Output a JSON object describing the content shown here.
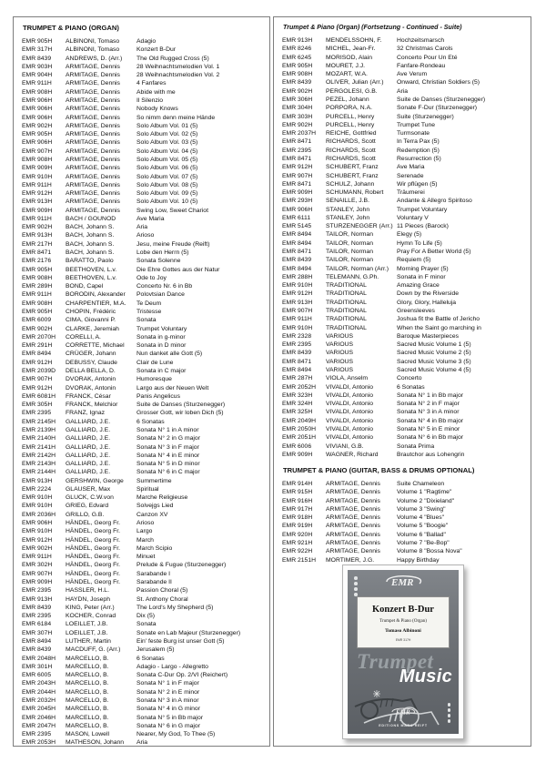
{
  "colors": {
    "box_border": "#7e7e7e",
    "cover_gray": "#6e7277",
    "cover_text_light": "#9aa0a4",
    "cover_text_white": "#ffffff"
  },
  "left_section": {
    "title": "TRUMPET & PIANO (ORGAN)",
    "rows": [
      [
        "EMR 905H",
        "ALBINONI, Tomaso",
        "Adagio"
      ],
      [
        "EMR 317H",
        "ALBINONI, Tomaso",
        "Konzert B-Dur"
      ],
      [
        "EMR 8439",
        "ANDREWS, D. (Arr.)",
        "The Old Rugged Cross (5)"
      ],
      [
        "EMR 903H",
        "ARMITAGE, Dennis",
        "28 Weihnachtsmelodien Vol. 1"
      ],
      [
        "EMR 904H",
        "ARMITAGE, Dennis",
        "28 Weihnachtsmelodien Vol. 2"
      ],
      [
        "EMR 911H",
        "ARMITAGE, Dennis",
        "4 Fanfares"
      ],
      [
        "EMR 908H",
        "ARMITAGE, Dennis",
        "Abide with me"
      ],
      [
        "EMR 906H",
        "ARMITAGE, Dennis",
        "Il Silenzio"
      ],
      [
        "EMR 906H",
        "ARMITAGE, Dennis",
        "Nobody Knows"
      ],
      [
        "EMR 906H",
        "ARMITAGE, Dennis",
        "So nimm denn meine Hände"
      ],
      [
        "EMR 902H",
        "ARMITAGE, Dennis",
        "Solo Album Vol. 01 (5)"
      ],
      [
        "EMR 905H",
        "ARMITAGE, Dennis",
        "Solo Album Vol. 02 (5)"
      ],
      [
        "EMR 906H",
        "ARMITAGE, Dennis",
        "Solo Album Vol. 03 (5)"
      ],
      [
        "EMR 907H",
        "ARMITAGE, Dennis",
        "Solo Album Vol. 04 (5)"
      ],
      [
        "EMR 908H",
        "ARMITAGE, Dennis",
        "Solo Album Vol. 05 (5)"
      ],
      [
        "EMR 909H",
        "ARMITAGE, Dennis",
        "Solo Album Vol. 06 (5)"
      ],
      [
        "EMR 910H",
        "ARMITAGE, Dennis",
        "Solo Album Vol. 07 (5)"
      ],
      [
        "EMR 911H",
        "ARMITAGE, Dennis",
        "Solo Album Vol. 08 (5)"
      ],
      [
        "EMR 912H",
        "ARMITAGE, Dennis",
        "Solo Album Vol. 09 (5)"
      ],
      [
        "EMR 913H",
        "ARMITAGE, Dennis",
        "Solo Album Vol. 10 (5)"
      ],
      [
        "EMR 909H",
        "ARMITAGE, Dennis",
        "Swing Low, Sweet Chariot"
      ],
      [
        "EMR 911H",
        "BACH / GOUNOD",
        "Ave Maria"
      ],
      [
        "EMR 902H",
        "BACH, Johann S.",
        "Aria"
      ],
      [
        "EMR 913H",
        "BACH, Johann S.",
        "Arioso"
      ],
      [
        "EMR 217H",
        "BACH, Johann S.",
        "Jesu, meine Freude (Reift)"
      ],
      [
        "EMR 8471",
        "BACH, Johann S.",
        "Lobe den Herrn (5)"
      ],
      [
        "EMR 2176",
        "BARATTO, Paolo",
        "Sonata Solenne"
      ],
      [
        "EMR 905H",
        "BEETHOVEN, L.v.",
        "Die Ehre Gottes aus der Natur"
      ],
      [
        "EMR 908H",
        "BEETHOVEN, L.v.",
        "Ode to Joy"
      ],
      [
        "EMR 289H",
        "BOND, Capel",
        "Concerto Nr. 6 in Bb"
      ],
      [
        "EMR 911H",
        "BORODIN, Alexander",
        "Polovtsian Dance"
      ],
      [
        "EMR 908H",
        "CHARPENTIER, M.A.",
        "Te Deum"
      ],
      [
        "EMR 905H",
        "CHOPIN, Frédéric",
        "Tristesse"
      ],
      [
        "EMR 6009",
        "CIMA, Giovanni P.",
        "Sonata"
      ],
      [
        "EMR 902H",
        "CLARKE, Jeremiah",
        "Trumpet Voluntary"
      ],
      [
        "EMR 2070H",
        "CORELLI, A.",
        "Sonata in g-minor"
      ],
      [
        "EMR 291H",
        "CORRETTE, Michael",
        "Sonata in D minor"
      ],
      [
        "EMR 8494",
        "CRÜGER, Johann",
        "Nun danket alle Gott (5)"
      ],
      [
        "EMR 912H",
        "DEBUSSY, Claude",
        "Clair de Lune"
      ],
      [
        "EMR 2039D",
        "DELLA BELLA, D.",
        "Sonata in C major"
      ],
      [
        "EMR 907H",
        "DVORAK, Antonin",
        "Humoresque"
      ],
      [
        "EMR 912H",
        "DVORAK, Antonin",
        "Largo aus der Neuen Welt"
      ],
      [
        "EMR 6081H",
        "FRANCK, César",
        "Panis Angelicus"
      ],
      [
        "EMR 305H",
        "FRANCK, Melchior",
        "Suite de Danses (Sturzenegger)"
      ],
      [
        "EMR 2395",
        "FRANZ, Ignaz",
        "Grosser Gott, wir loben Dich (5)"
      ],
      [
        "EMR 2145H",
        "GALLIARD, J.E.",
        "6 Sonatas"
      ],
      [
        "EMR 2139H",
        "GALLIARD, J.E.",
        "Sonata N° 1 in A minor"
      ],
      [
        "EMR 2140H",
        "GALLIARD, J.E.",
        "Sonata N° 2 in G major"
      ],
      [
        "EMR 2141H",
        "GALLIARD, J.E.",
        "Sonata N° 3 in F major"
      ],
      [
        "EMR 2142H",
        "GALLIARD, J.E.",
        "Sonata N° 4 in E minor"
      ],
      [
        "EMR 2143H",
        "GALLIARD, J.E.",
        "Sonata N° 5 in D minor"
      ],
      [
        "EMR 2144H",
        "GALLIARD, J.E.",
        "Sonata N° 6 in C major"
      ],
      [
        "EMR 913H",
        "GERSHWIN, George",
        "Summertime"
      ],
      [
        "EMR 2224",
        "GLAUSER, Max",
        "Spiritual"
      ],
      [
        "EMR 910H",
        "GLUCK, C.W.von",
        "Marche Religieuse"
      ],
      [
        "EMR 910H",
        "GRIEG, Edvard",
        "Solvejgs Lied"
      ],
      [
        "EMR 2036H",
        "GRILLO, G.B.",
        "Canzon XV"
      ],
      [
        "EMR 906H",
        "HÄNDEL, Georg Fr.",
        "Arioso"
      ],
      [
        "EMR 910H",
        "HÄNDEL, Georg Fr.",
        "Largo"
      ],
      [
        "EMR 912H",
        "HÄNDEL, Georg Fr.",
        "March"
      ],
      [
        "EMR 902H",
        "HÄNDEL, Georg Fr.",
        "March Scipio"
      ],
      [
        "EMR 911H",
        "HÄNDEL, Georg Fr.",
        "Minuet"
      ],
      [
        "EMR 302H",
        "HÄNDEL, Georg Fr.",
        "Prelude & Fugue (Sturzenegger)"
      ],
      [
        "EMR 907H",
        "HÄNDEL, Georg Fr.",
        "Sarabande I"
      ],
      [
        "EMR 909H",
        "HÄNDEL, Georg Fr.",
        "Sarabande II"
      ],
      [
        "EMR 2395",
        "HASSLER, H.L.",
        "Passion Choral (5)"
      ],
      [
        "EMR 913H",
        "HAYDN, Joseph",
        "St. Anthony Choral"
      ],
      [
        "EMR 8439",
        "KING, Peter (Arr.)",
        "The Lord's My Shepherd (5)"
      ],
      [
        "EMR 2395",
        "KOCHER, Conrad",
        "Dix (5)"
      ],
      [
        "EMR 6184",
        "LOEILLET, J.B.",
        "Sonata"
      ],
      [
        "EMR 307H",
        "LOEILLET, J.B.",
        "Sonate en Lab Majeur (Sturzenegger)"
      ],
      [
        "EMR 8494",
        "LUTHER, Martin",
        "Ein' feste Burg ist unser Gott (5)"
      ],
      [
        "EMR 8439",
        "MACDUFF, G. (Arr.)",
        "Jerusalem (5)"
      ],
      [
        "EMR 2048H",
        "MARCELLO, B.",
        "6 Sonatas"
      ],
      [
        "EMR 301H",
        "MARCELLO, B.",
        "Adagio - Largo - Allegretto"
      ],
      [
        "EMR 6005",
        "MARCELLO, B.",
        "Sonata C-Dur Op. 2/VI (Reichert)"
      ],
      [
        "EMR 2043H",
        "MARCELLO, B.",
        "Sonata N° 1 in F major"
      ],
      [
        "EMR 2044H",
        "MARCELLO, B.",
        "Sonata N° 2 in E minor"
      ],
      [
        "EMR 2032H",
        "MARCELLO, B.",
        "Sonata N° 3 in A minor"
      ],
      [
        "EMR 2045H",
        "MARCELLO, B.",
        "Sonata N° 4 in G minor"
      ],
      [
        "EMR 2046H",
        "MARCELLO, B.",
        "Sonata N° 5 in Bb major"
      ],
      [
        "EMR 2047H",
        "MARCELLO, B.",
        "Sonata N° 6 in G major"
      ],
      [
        "EMR 2395",
        "MASON, Lowell",
        "Nearer, My God, To Thee (5)"
      ],
      [
        "EMR 2053H",
        "MATHESON, Johann",
        "Aria"
      ]
    ]
  },
  "right_section": {
    "title": "Trumpet & Piano (Organ) (Fortsetzung - Continued - Suite)",
    "rows": [
      [
        "EMR 913H",
        "MENDELSSOHN, F.",
        "Hochzeitsmarsch"
      ],
      [
        "EMR 8246",
        "MICHEL, Jean-Fr.",
        "32 Christmas Carols"
      ],
      [
        "EMR 6245",
        "MORISOD, Alain",
        "Concerto Pour Un Eté"
      ],
      [
        "EMR 905H",
        "MOURET, J.J.",
        "Fanfare-Rondeau"
      ],
      [
        "EMR 908H",
        "MOZART, W.A.",
        "Ave Verum"
      ],
      [
        "EMR 8439",
        "OLIVER, Julian (Arr.)",
        "Onward, Christian Soldiers (5)"
      ],
      [
        "EMR 902H",
        "PERGOLESI, G.B.",
        "Aria"
      ],
      [
        "EMR 306H",
        "PEZEL, Johann",
        "Suite de Danses (Sturzenegger)"
      ],
      [
        "EMR 304H",
        "PORPORA, N.A.",
        "Sonate F-Dur (Sturzenegger)"
      ],
      [
        "EMR 303H",
        "PURCELL, Henry",
        "Suite (Sturzenegger)"
      ],
      [
        "EMR 902H",
        "PURCELL, Henry",
        "Trumpet Tune"
      ],
      [
        "EMR 2037H",
        "REICHE, Gottfried",
        "Turmsonate"
      ],
      [
        "EMR 8471",
        "RICHARDS, Scott",
        "In Terra Pax (5)"
      ],
      [
        "EMR 2395",
        "RICHARDS, Scott",
        "Redemption (5)"
      ],
      [
        "EMR 8471",
        "RICHARDS, Scott",
        "Resurrection (5)"
      ],
      [
        "EMR 912H",
        "SCHUBERT, Franz",
        "Ave Maria"
      ],
      [
        "EMR 907H",
        "SCHUBERT, Franz",
        "Serenade"
      ],
      [
        "EMR 8471",
        "SCHULZ, Johann",
        "Wir pflügen (5)"
      ],
      [
        "EMR 909H",
        "SCHUMANN, Robert",
        "Träumerei"
      ],
      [
        "EMR 293H",
        "SENAILLE, J.B.",
        "Andante & Allegro Spiritoso"
      ],
      [
        "EMR 906H",
        "STANLEY, John",
        "Trumpet Voluntary"
      ],
      [
        "EMR 6111",
        "STANLEY, John",
        "Voluntary V"
      ],
      [
        "EMR 5145",
        "STURZENEGGER (Arr.)",
        "11 Pieces (Barock)"
      ],
      [
        "EMR 8494",
        "TAILOR, Norman",
        "Elegy (5)"
      ],
      [
        "EMR 8494",
        "TAILOR, Norman",
        "Hymn To Life (5)"
      ],
      [
        "EMR 8471",
        "TAILOR, Norman",
        "Pray For A Better World (5)"
      ],
      [
        "EMR 8439",
        "TAILOR, Norman",
        "Requiem (5)"
      ],
      [
        "EMR 8494",
        "TAILOR, Norman (Arr.)",
        "Morning Prayer (5)"
      ],
      [
        "EMR 288H",
        "TELEMANN, G.Ph.",
        "Sonata in F minor"
      ],
      [
        "EMR 910H",
        "TRADITIONAL",
        "Amazing Grace"
      ],
      [
        "EMR 912H",
        "TRADITIONAL",
        "Down by the Riverside"
      ],
      [
        "EMR 913H",
        "TRADITIONAL",
        "Glory, Glory, Halleluja"
      ],
      [
        "EMR 907H",
        "TRADITIONAL",
        "Greensleeves"
      ],
      [
        "EMR 911H",
        "TRADITIONAL",
        "Joshua fit the Battle of Jericho"
      ],
      [
        "EMR 910H",
        "TRADITIONAL",
        "When the Saint go marching in"
      ],
      [
        "EMR 2328",
        "VARIOUS",
        "Baroque Masterpieces"
      ],
      [
        "EMR 2395",
        "VARIOUS",
        "Sacred Music Volume 1 (5)"
      ],
      [
        "EMR 8439",
        "VARIOUS",
        "Sacred Music Volume 2 (5)"
      ],
      [
        "EMR 8471",
        "VARIOUS",
        "Sacred Music Volume 3 (5)"
      ],
      [
        "EMR 8494",
        "VARIOUS",
        "Sacred Music Volume 4 (5)"
      ],
      [
        "EMR 287H",
        "VIOLA, Anselm",
        "Concerto"
      ],
      [
        "EMR 2052H",
        "VIVALDI, Antonio",
        "6 Sonatas"
      ],
      [
        "EMR 323H",
        "VIVALDI, Antonio",
        "Sonata N° 1 in Bb major"
      ],
      [
        "EMR 324H",
        "VIVALDI, Antonio",
        "Sonata N° 2 in F major"
      ],
      [
        "EMR 325H",
        "VIVALDI, Antonio",
        "Sonata N° 3 in A minor"
      ],
      [
        "EMR 2049H",
        "VIVALDI, Antonio",
        "Sonata N° 4 in Bb major"
      ],
      [
        "EMR 2050H",
        "VIVALDI, Antonio",
        "Sonata N° 5 in E minor"
      ],
      [
        "EMR 2051H",
        "VIVALDI, Antonio",
        "Sonata N° 6 in Bb major"
      ],
      [
        "EMR 6006",
        "VIVIANI, G.B.",
        "Sonata Prima"
      ],
      [
        "EMR 909H",
        "WAGNER, Richard",
        "Brautchor aus Lohengrin"
      ]
    ]
  },
  "optional_section": {
    "title": "TRUMPET & PIANO (GUITAR, BASS & DRUMS OPTIONAL)",
    "rows": [
      [
        "EMR 914H",
        "ARMITAGE, Dennis",
        "Suite Chameleon"
      ],
      [
        "EMR 915H",
        "ARMITAGE, Dennis",
        "Volume 1 \"Ragtime\""
      ],
      [
        "EMR 916H",
        "ARMITAGE, Dennis",
        "Volume 2 \"Dixieland\""
      ],
      [
        "EMR 917H",
        "ARMITAGE, Dennis",
        "Volume 3 \"Swing\""
      ],
      [
        "EMR 918H",
        "ARMITAGE, Dennis",
        "Volume 4 \"Blues\""
      ],
      [
        "EMR 919H",
        "ARMITAGE, Dennis",
        "Volume 5 \"Boogie\""
      ],
      [
        "EMR 920H",
        "ARMITAGE, Dennis",
        "Volume 6 \"Ballad\""
      ],
      [
        "EMR 921H",
        "ARMITAGE, Dennis",
        "Volume 7 \"Be-Bop\""
      ],
      [
        "EMR 922H",
        "ARMITAGE, Dennis",
        "Volume 8 \"Bossa Nova\""
      ],
      [
        "EMR 2151H",
        "MORTIMER, J.G.",
        "Happy Birthday"
      ]
    ]
  },
  "cover": {
    "logo_text": "EMR",
    "work_title": "Konzert B-Dur",
    "work_subtitle": "Trumpet & Piano (Organ)",
    "composer": "Tomaso Albinoni",
    "ref": "EMR 317H",
    "series_word1": "Trumpet",
    "series_word2": "Music",
    "footer_logo_text": "EMR",
    "publisher": "EDITIONS MARC REIFT"
  }
}
